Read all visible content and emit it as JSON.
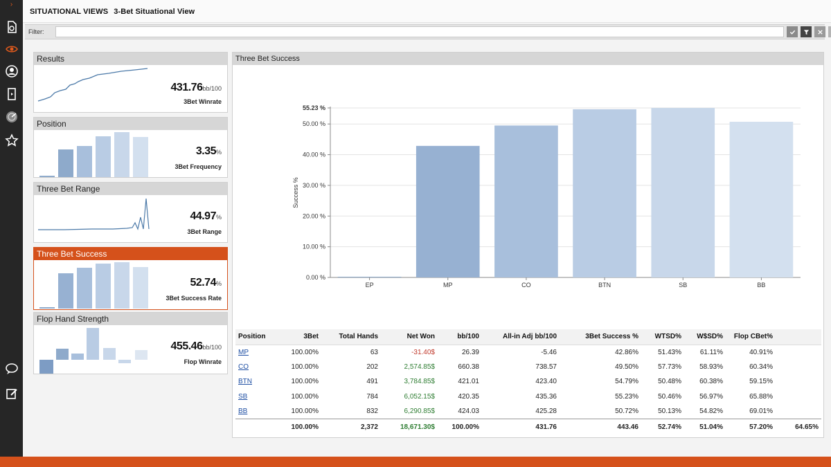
{
  "header": {
    "section": "SITUATIONAL VIEWS",
    "view": "3-Bet Situational View"
  },
  "filter": {
    "label": "Filter:",
    "value": ""
  },
  "rail": [
    "chevron-right-icon",
    "report-icon",
    "eye-icon",
    "user-icon",
    "card-icon",
    "radar-icon",
    "star-icon",
    "chat-icon",
    "edit-icon"
  ],
  "cards": [
    {
      "title": "Results",
      "value": "431.76",
      "unit": "bb/100",
      "metric": "3Bet Winrate"
    },
    {
      "title": "Position",
      "value": "3.35",
      "unit": "%",
      "metric": "3Bet Frequency"
    },
    {
      "title": "Three Bet Range",
      "value": "44.97",
      "unit": "%",
      "metric": "3Bet Range"
    },
    {
      "title": "Three Bet Success",
      "value": "52.74",
      "unit": "%",
      "metric": "3Bet Success Rate"
    },
    {
      "title": "Flop Hand Strength",
      "value": "455.46",
      "unit": "bb/100",
      "metric": "Flop Winrate"
    }
  ],
  "panel": {
    "title": "Three Bet Success"
  },
  "chart_data": {
    "type": "bar",
    "ylabel": "Success %",
    "categories": [
      "EP",
      "MP",
      "CO",
      "BTN",
      "SB",
      "BB"
    ],
    "values": [
      0.0,
      42.86,
      49.5,
      54.79,
      55.23,
      50.72
    ],
    "yticks": [
      "0.00 %",
      "10.00 %",
      "20.00 %",
      "30.00 %",
      "40.00 %",
      "50.00 %",
      "55.23 %"
    ],
    "ylim": [
      0,
      55.23
    ],
    "colors": [
      "#8eaacb",
      "#97b1d2",
      "#a8bfdc",
      "#b9cce4",
      "#c8d7ea",
      "#d3e0ef"
    ],
    "grid": true
  },
  "table": {
    "headers": [
      "Position",
      "3Bet",
      "Total Hands",
      "Net Won",
      "bb/100",
      "All-in Adj bb/100",
      "3Bet Success %",
      "WTSD%",
      "W$SD%",
      "Flop CBet%",
      ""
    ],
    "rows": [
      [
        "MP",
        "100.00%",
        "63",
        "-31.40$",
        "26.39",
        "-5.46",
        "42.86%",
        "51.43%",
        "61.11%",
        "40.91%",
        ""
      ],
      [
        "CO",
        "100.00%",
        "202",
        "2,574.85$",
        "660.38",
        "738.57",
        "49.50%",
        "57.73%",
        "58.93%",
        "60.34%",
        ""
      ],
      [
        "BTN",
        "100.00%",
        "491",
        "3,784.85$",
        "421.01",
        "423.40",
        "54.79%",
        "50.48%",
        "60.38%",
        "59.15%",
        ""
      ],
      [
        "SB",
        "100.00%",
        "784",
        "6,052.15$",
        "420.35",
        "435.36",
        "55.23%",
        "50.46%",
        "56.97%",
        "65.88%",
        ""
      ],
      [
        "BB",
        "100.00%",
        "832",
        "6,290.85$",
        "424.03",
        "425.28",
        "50.72%",
        "50.13%",
        "54.82%",
        "69.01%",
        ""
      ]
    ],
    "total": [
      "",
      "100.00%",
      "2,372",
      "18,671.30$",
      "100.00%",
      "431.76",
      "443.46",
      "52.74%",
      "51.04%",
      "57.20%",
      "64.65%"
    ]
  }
}
